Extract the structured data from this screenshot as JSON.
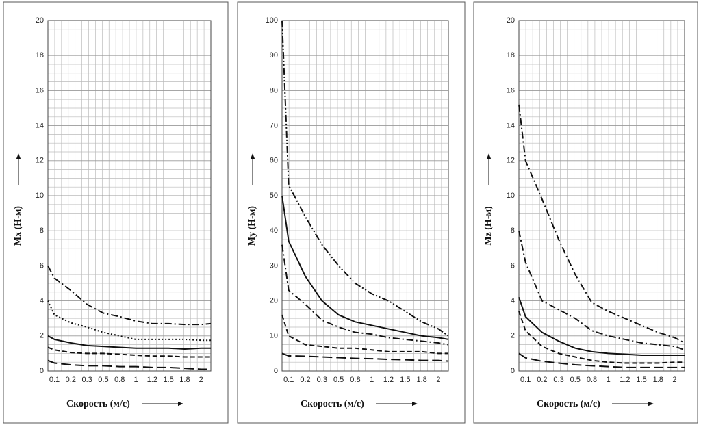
{
  "chart_data": [
    {
      "type": "line",
      "y_label": "Mx (Н-м)",
      "x_label": "Скорость (м/с)",
      "categories": [
        null,
        "0.1",
        "0.2",
        "0.3",
        "0.5",
        "0.8",
        "1",
        "1.2",
        "1.5",
        "1.8",
        "2",
        null
      ],
      "ylim": [
        0,
        20
      ],
      "yticks": [
        0,
        2,
        4,
        6,
        8,
        10,
        12,
        14,
        16,
        18,
        20
      ],
      "grid": true,
      "series": [
        {
          "color": "#111111",
          "style": "dash-dot",
          "values": [
            6.0,
            5.3,
            4.6,
            3.8,
            3.3,
            3.1,
            2.85,
            2.7,
            2.7,
            2.65,
            2.65,
            2.7
          ]
        },
        {
          "color": "#111111",
          "style": "dotted",
          "values": [
            4.0,
            3.2,
            2.75,
            2.5,
            2.2,
            2.0,
            1.8,
            1.8,
            1.8,
            1.8,
            1.75,
            1.75
          ]
        },
        {
          "color": "#111111",
          "style": "solid",
          "values": [
            2.0,
            1.8,
            1.6,
            1.45,
            1.4,
            1.35,
            1.3,
            1.3,
            1.3,
            1.25,
            1.3,
            1.3
          ]
        },
        {
          "color": "#111111",
          "style": "dashed",
          "values": [
            1.35,
            1.2,
            1.05,
            1.0,
            1.0,
            0.95,
            0.9,
            0.85,
            0.85,
            0.8,
            0.8,
            0.8
          ]
        },
        {
          "color": "#111111",
          "style": "long-dash",
          "values": [
            0.6,
            0.45,
            0.35,
            0.3,
            0.3,
            0.25,
            0.25,
            0.2,
            0.2,
            0.15,
            0.1,
            0.1
          ]
        }
      ]
    },
    {
      "type": "line",
      "y_label": "My (Н-м)",
      "x_label": "Скорость (м/с)",
      "categories": [
        null,
        "0.1",
        "0.2",
        "0.3",
        "0.5",
        "0.8",
        "1",
        "1.2",
        "1.5",
        "1.8",
        "2",
        null
      ],
      "ylim": [
        0,
        100
      ],
      "yticks": [
        0,
        10,
        20,
        30,
        40,
        50,
        60,
        70,
        80,
        90,
        100
      ],
      "grid": true,
      "series": [
        {
          "color": "#111111",
          "style": "dash-dot-dot",
          "values": [
            100,
            53,
            44,
            36,
            30,
            25,
            22,
            20,
            17,
            14,
            12,
            10
          ]
        },
        {
          "color": "#111111",
          "style": "solid",
          "values": [
            50,
            37,
            27,
            20,
            16,
            14,
            13,
            12,
            11,
            10,
            9.5,
            9
          ]
        },
        {
          "color": "#111111",
          "style": "dash-dot",
          "values": [
            36,
            23,
            19,
            14.5,
            12.5,
            11,
            10.5,
            9.5,
            9,
            8.5,
            8,
            7.5
          ]
        },
        {
          "color": "#111111",
          "style": "dashed",
          "values": [
            16,
            10,
            7.5,
            7,
            6.5,
            6.5,
            6,
            5.5,
            5.5,
            5.5,
            5,
            5
          ]
        },
        {
          "color": "#111111",
          "style": "long-dash",
          "values": [
            5,
            4.3,
            4.2,
            4,
            3.8,
            3.6,
            3.5,
            3.3,
            3.2,
            3,
            3,
            2.8
          ]
        }
      ]
    },
    {
      "type": "line",
      "y_label": "Mz (Н-м)",
      "x_label": "Скорость (м/с)",
      "categories": [
        null,
        "0.1",
        "0.2",
        "0.3",
        "0.5",
        "0.8",
        "1",
        "1.2",
        "1.5",
        "1.8",
        "2",
        null
      ],
      "ylim": [
        0,
        20
      ],
      "yticks": [
        0,
        2,
        4,
        6,
        8,
        10,
        12,
        14,
        16,
        18,
        20
      ],
      "grid": true,
      "series": [
        {
          "color": "#111111",
          "style": "dash-dot",
          "values": [
            15.2,
            12,
            9.8,
            7.5,
            5.5,
            3.9,
            3.4,
            3.0,
            2.6,
            2.2,
            1.9,
            1.6
          ]
        },
        {
          "color": "#111111",
          "style": "dash-dot",
          "values": [
            8,
            6.2,
            4.0,
            3.5,
            3.0,
            2.3,
            2.0,
            1.8,
            1.6,
            1.5,
            1.4,
            1.2
          ]
        },
        {
          "color": "#111111",
          "style": "solid",
          "values": [
            4.2,
            3.1,
            2.2,
            1.7,
            1.3,
            1.1,
            1.0,
            0.95,
            0.9,
            0.9,
            0.9,
            0.9
          ]
        },
        {
          "color": "#111111",
          "style": "dashed",
          "values": [
            3.4,
            2.3,
            1.4,
            1.0,
            0.8,
            0.6,
            0.5,
            0.45,
            0.45,
            0.45,
            0.5,
            0.5
          ]
        },
        {
          "color": "#111111",
          "style": "long-dash",
          "values": [
            1.0,
            0.75,
            0.55,
            0.45,
            0.35,
            0.3,
            0.25,
            0.2,
            0.2,
            0.2,
            0.2,
            0.2
          ]
        }
      ]
    }
  ]
}
